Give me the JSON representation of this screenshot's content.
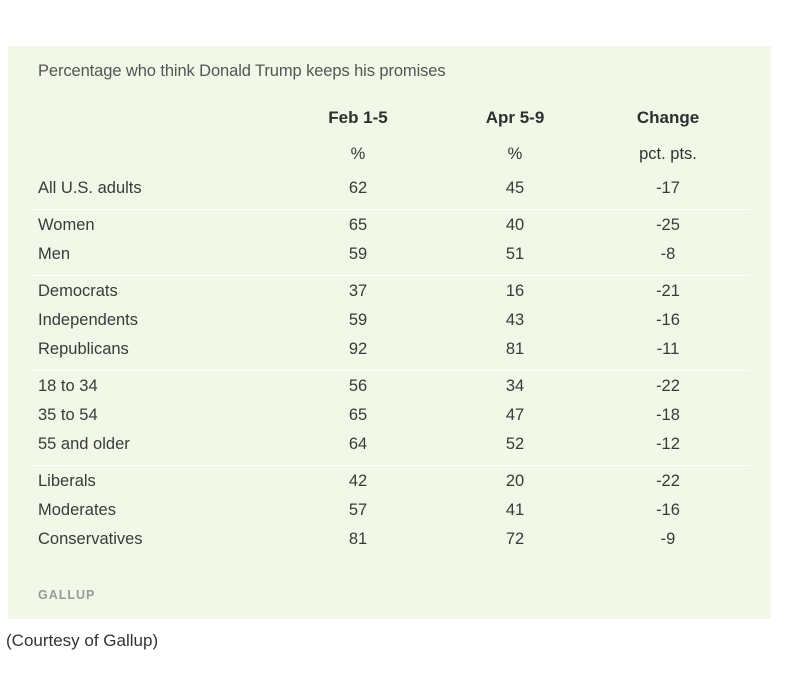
{
  "chart_data": {
    "type": "table",
    "title": "Percentage who think Donald Trump keeps his promises",
    "columns": [
      {
        "header": "Feb 1-5",
        "unit": "%"
      },
      {
        "header": "Apr 5-9",
        "unit": "%"
      },
      {
        "header": "Change",
        "unit": "pct. pts."
      }
    ],
    "groups": [
      {
        "rows": [
          {
            "label": "All U.S. adults",
            "values": [
              "62",
              "45",
              "-17"
            ]
          }
        ]
      },
      {
        "rows": [
          {
            "label": "Women",
            "values": [
              "65",
              "40",
              "-25"
            ]
          },
          {
            "label": "Men",
            "values": [
              "59",
              "51",
              "-8"
            ]
          }
        ]
      },
      {
        "rows": [
          {
            "label": "Democrats",
            "values": [
              "37",
              "16",
              "-21"
            ]
          },
          {
            "label": "Independents",
            "values": [
              "59",
              "43",
              "-16"
            ]
          },
          {
            "label": "Republicans",
            "values": [
              "92",
              "81",
              "-11"
            ]
          }
        ]
      },
      {
        "rows": [
          {
            "label": "18 to 34",
            "values": [
              "56",
              "34",
              "-22"
            ]
          },
          {
            "label": "35 to 54",
            "values": [
              "65",
              "47",
              "-18"
            ]
          },
          {
            "label": "55 and older",
            "values": [
              "64",
              "52",
              "-12"
            ]
          }
        ]
      },
      {
        "rows": [
          {
            "label": "Liberals",
            "values": [
              "42",
              "20",
              "-22"
            ]
          },
          {
            "label": "Moderates",
            "values": [
              "57",
              "41",
              "-16"
            ]
          },
          {
            "label": "Conservatives",
            "values": [
              "81",
              "72",
              "-9"
            ]
          }
        ]
      }
    ],
    "source": "GALLUP"
  },
  "caption": "(Courtesy of Gallup)"
}
